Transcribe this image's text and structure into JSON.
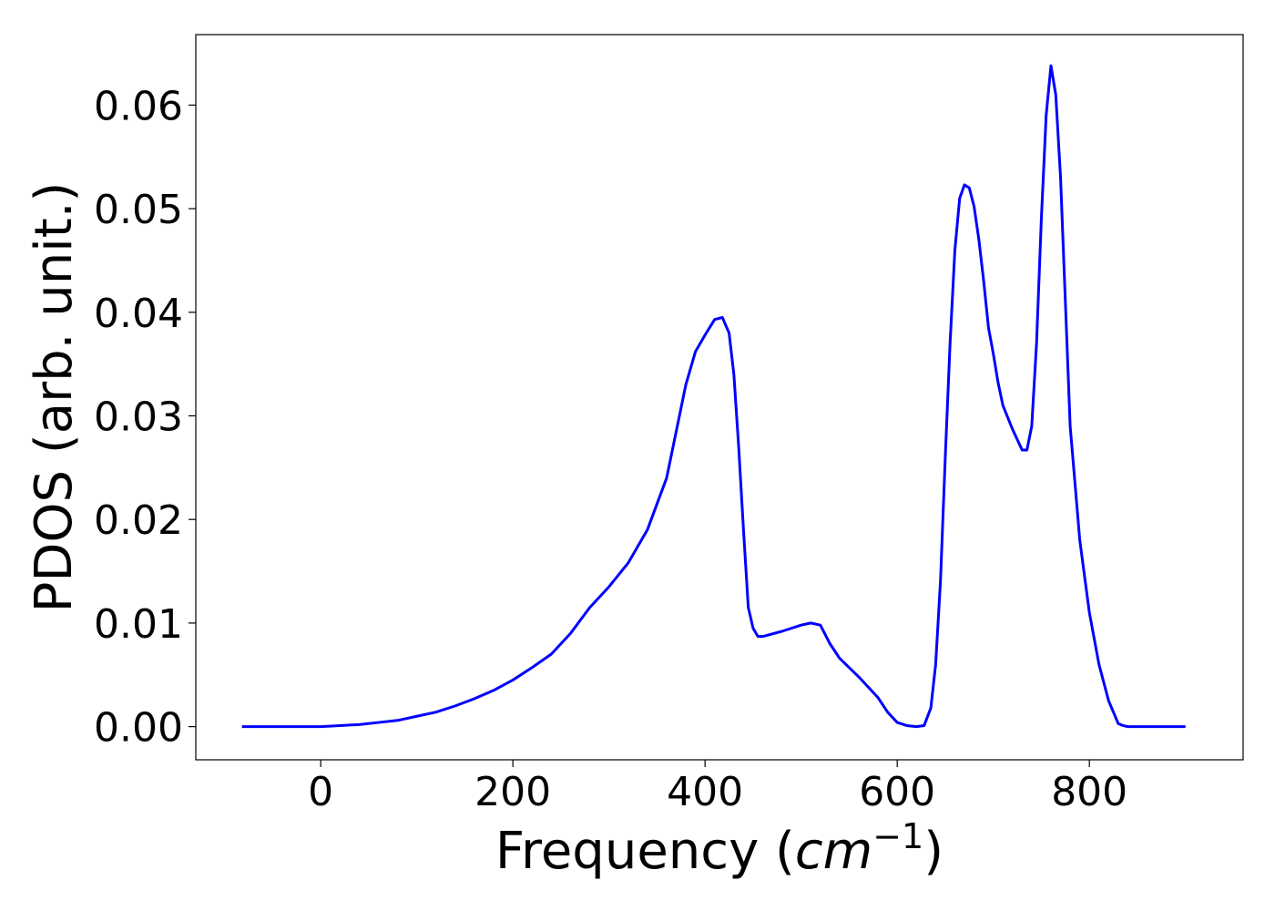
{
  "chart_data": {
    "type": "line",
    "xlabel": "Frequency (cm⁻¹)",
    "xlabel_parts": {
      "main": "Frequency (",
      "italic": "cm",
      "sup": "−1",
      "close": ")"
    },
    "ylabel": "PDOS (arb. unit.)",
    "xlim": [
      -130,
      960
    ],
    "ylim": [
      -0.0032,
      0.0668
    ],
    "x_ticks": [
      0,
      200,
      400,
      600,
      800
    ],
    "x_tick_labels": [
      "0",
      "200",
      "400",
      "600",
      "800"
    ],
    "y_ticks": [
      0.0,
      0.01,
      0.02,
      0.03,
      0.04,
      0.05,
      0.06
    ],
    "y_tick_labels": [
      "0.00",
      "0.01",
      "0.02",
      "0.03",
      "0.04",
      "0.05",
      "0.06"
    ],
    "grid": false,
    "legend": "none",
    "series": [
      {
        "color": "#0000ff",
        "x": [
          -82,
          0,
          20,
          40,
          60,
          80,
          100,
          120,
          140,
          160,
          180,
          200,
          220,
          240,
          260,
          280,
          300,
          320,
          340,
          360,
          370,
          380,
          390,
          400,
          410,
          418,
          425,
          430,
          435,
          440,
          445,
          450,
          455,
          460,
          480,
          500,
          510,
          520,
          530,
          540,
          560,
          580,
          590,
          600,
          610,
          620,
          628,
          635,
          640,
          645,
          650,
          655,
          660,
          665,
          670,
          675,
          680,
          685,
          690,
          695,
          700,
          705,
          710,
          720,
          730,
          735,
          740,
          745,
          750,
          755,
          760,
          765,
          770,
          775,
          780,
          785,
          790,
          800,
          810,
          820,
          830,
          835,
          840,
          850,
          870,
          900
        ],
        "y": [
          0.0,
          0.0,
          0.0001,
          0.0002,
          0.0004,
          0.0006,
          0.001,
          0.0014,
          0.002,
          0.0027,
          0.0035,
          0.0045,
          0.0057,
          0.007,
          0.009,
          0.0115,
          0.0135,
          0.0158,
          0.019,
          0.024,
          0.0285,
          0.033,
          0.0362,
          0.0378,
          0.0393,
          0.0395,
          0.038,
          0.034,
          0.027,
          0.019,
          0.0115,
          0.0095,
          0.0087,
          0.0087,
          0.0092,
          0.0098,
          0.01,
          0.0098,
          0.008,
          0.0066,
          0.0048,
          0.0028,
          0.0014,
          0.0004,
          0.0001,
          0.0,
          0.0001,
          0.0018,
          0.006,
          0.014,
          0.026,
          0.037,
          0.046,
          0.051,
          0.0523,
          0.052,
          0.0502,
          0.047,
          0.043,
          0.0385,
          0.036,
          0.0332,
          0.031,
          0.0287,
          0.0267,
          0.0267,
          0.029,
          0.037,
          0.049,
          0.059,
          0.0638,
          0.061,
          0.053,
          0.041,
          0.029,
          0.0235,
          0.018,
          0.011,
          0.006,
          0.0025,
          0.0003,
          0.0001,
          0.0,
          0.0,
          0.0,
          0.0
        ]
      }
    ]
  }
}
